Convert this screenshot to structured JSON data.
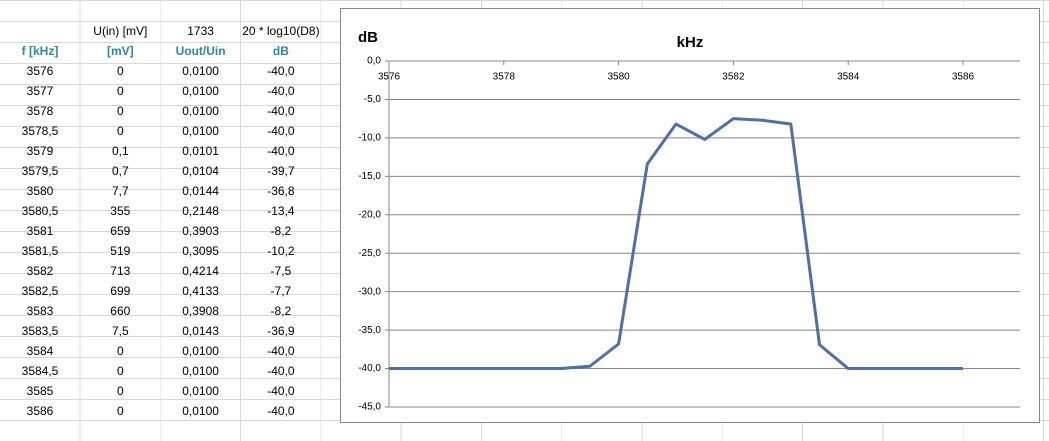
{
  "table": {
    "top_row": [
      "U(in) [mV]",
      "1733",
      "20 * log10(D8)"
    ],
    "header": [
      "f [kHz]",
      "[mV]",
      "Uout/Uin",
      "dB"
    ],
    "rows": [
      [
        "3576",
        "0",
        "0,0100",
        "-40,0"
      ],
      [
        "3577",
        "0",
        "0,0100",
        "-40,0"
      ],
      [
        "3578",
        "0",
        "0,0100",
        "-40,0"
      ],
      [
        "3578,5",
        "0",
        "0,0100",
        "-40,0"
      ],
      [
        "3579",
        "0,1",
        "0,0101",
        "-40,0"
      ],
      [
        "3579,5",
        "0,7",
        "0,0104",
        "-39,7"
      ],
      [
        "3580",
        "7,7",
        "0,0144",
        "-36,8"
      ],
      [
        "3580,5",
        "355",
        "0,2148",
        "-13,4"
      ],
      [
        "3581",
        "659",
        "0,3903",
        "-8,2"
      ],
      [
        "3581,5",
        "519",
        "0,3095",
        "-10,2"
      ],
      [
        "3582",
        "713",
        "0,4214",
        "-7,5"
      ],
      [
        "3582,5",
        "699",
        "0,4133",
        "-7,7"
      ],
      [
        "3583",
        "660",
        "0,3908",
        "-8,2"
      ],
      [
        "3583,5",
        "7,5",
        "0,0143",
        "-36,9"
      ],
      [
        "3584",
        "0",
        "0,0100",
        "-40,0"
      ],
      [
        "3584,5",
        "0",
        "0,0100",
        "-40,0"
      ],
      [
        "3585",
        "0",
        "0,0100",
        "-40,0"
      ],
      [
        "3586",
        "0",
        "0,0100",
        "-40,0"
      ]
    ]
  },
  "chart_data": {
    "type": "line",
    "title": "kHz",
    "y_label": "dB",
    "color": "#4f6fa8",
    "x": [
      3576,
      3577,
      3578,
      3578.5,
      3579,
      3579.5,
      3580,
      3580.5,
      3581,
      3581.5,
      3582,
      3582.5,
      3583,
      3583.5,
      3584,
      3584.5,
      3585,
      3586
    ],
    "values": [
      -40,
      -40,
      -40,
      -40,
      -40,
      -39.7,
      -36.8,
      -13.4,
      -8.2,
      -10.2,
      -7.5,
      -7.7,
      -8.2,
      -36.9,
      -40,
      -40,
      -40,
      -40
    ],
    "xlim": [
      3576,
      3586
    ],
    "xticks": [
      3576,
      3578,
      3580,
      3582,
      3584,
      3586
    ],
    "ylim": [
      -45,
      0
    ],
    "yticks": [
      {
        "value": 0,
        "label": "0,0"
      },
      {
        "value": -5,
        "label": "-5,0"
      },
      {
        "value": -10,
        "label": "-10,0"
      },
      {
        "value": -15,
        "label": "-15,0"
      },
      {
        "value": -20,
        "label": "-20,0"
      },
      {
        "value": -25,
        "label": "-25,0"
      },
      {
        "value": -30,
        "label": "-30,0"
      },
      {
        "value": -35,
        "label": "-35,0"
      },
      {
        "value": -40,
        "label": "-40,0"
      },
      {
        "value": -45,
        "label": "-45,0"
      }
    ],
    "grid": true
  }
}
